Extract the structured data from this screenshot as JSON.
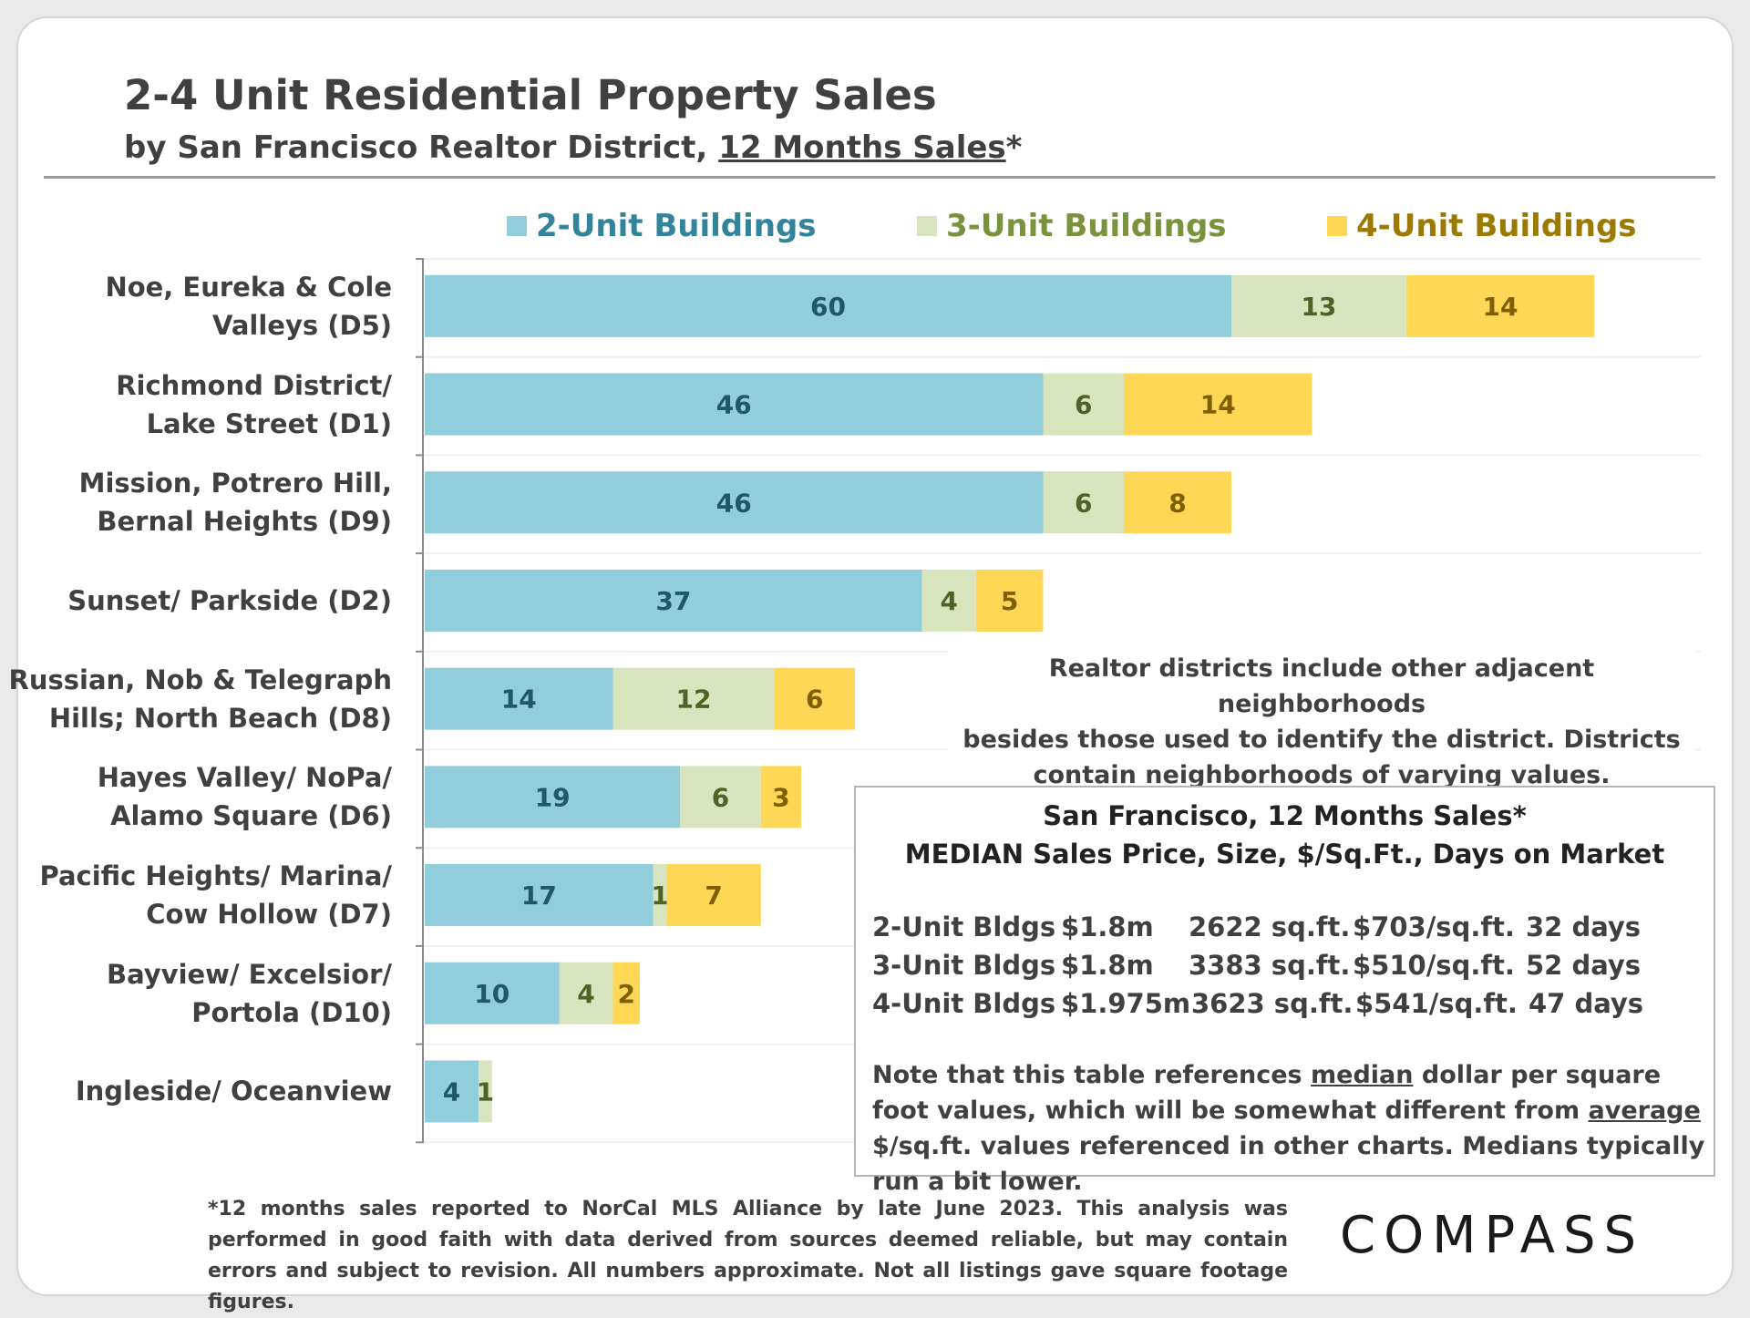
{
  "header": {
    "title": "2-4 Unit Residential Property Sales",
    "subtitle_prefix": "by San Francisco Realtor District, ",
    "subtitle_underlined": "12 Months Sales",
    "subtitle_suffix": "*"
  },
  "colors": {
    "unit2": "#92CDDC",
    "unit3": "#D7E4BD",
    "unit4": "#FFD757",
    "legend2_text": "#31849B",
    "legend3_text": "#77933C",
    "legend4_text": "#9C7A00",
    "label2_text": "#215868",
    "label3_text": "#4F6228",
    "label4_text": "#7F6000"
  },
  "chart_data": {
    "type": "bar",
    "orientation": "horizontal",
    "stacked": true,
    "title": "2-4 Unit Residential Property Sales",
    "categories": [
      [
        "Noe, Eureka & Cole",
        "Valleys (D5)"
      ],
      [
        "Richmond District/",
        "Lake Street (D1)"
      ],
      [
        "Mission, Potrero Hill,",
        "Bernal Heights (D9)"
      ],
      [
        "Sunset/ Parkside (D2)"
      ],
      [
        "Russian, Nob & Telegraph",
        "Hills; North Beach (D8)"
      ],
      [
        "Hayes Valley/ NoPa/",
        "Alamo Square (D6)"
      ],
      [
        "Pacific Heights/ Marina/",
        "Cow Hollow (D7)"
      ],
      [
        "Bayview/ Excelsior/",
        "Portola (D10)"
      ],
      [
        "Ingleside/ Oceanview"
      ]
    ],
    "series": [
      {
        "name": "2-Unit Buildings",
        "values": [
          60,
          46,
          46,
          37,
          14,
          19,
          17,
          10,
          4
        ]
      },
      {
        "name": "3-Unit Buildings",
        "values": [
          13,
          6,
          6,
          4,
          12,
          6,
          1,
          4,
          1
        ]
      },
      {
        "name": "4-Unit Buildings",
        "values": [
          14,
          14,
          8,
          5,
          6,
          3,
          7,
          2,
          0
        ]
      }
    ],
    "xlim": [
      0,
      95
    ],
    "grid": true,
    "legend": "top"
  },
  "note": {
    "lines": [
      "Realtor districts include other adjacent neighborhoods",
      "besides those used to identify the district. Districts",
      "contain neighborhoods of varying values."
    ]
  },
  "stats": {
    "heading1": "San Francisco, 12 Months Sales*",
    "heading2": "MEDIAN Sales Price, Size, $/Sq.Ft., Days on Market",
    "rows": [
      {
        "type": "2-Unit Bldgs",
        "price": "$1.8m",
        "size": "2622 sq.ft.",
        "ppsf": "$703/sq.ft.",
        "dom": "32 days"
      },
      {
        "type": "3-Unit Bldgs",
        "price": "$1.8m",
        "size": "3383 sq.ft.",
        "ppsf": "$510/sq.ft.",
        "dom": "52 days"
      },
      {
        "type": "4-Unit Bldgs",
        "price": "$1.975m",
        "size": "3623 sq.ft.",
        "ppsf": "$541/sq.ft.",
        "dom": "47 days"
      }
    ],
    "note_a": "Note that this table references ",
    "note_median": "median",
    "note_b": " dollar per square foot values, which will be somewhat different from ",
    "note_average": "average",
    "note_c": " $/sq.ft. values referenced in other charts. Medians typically run a bit lower."
  },
  "footnote": "*12 months sales reported to NorCal MLS Alliance by late June 2023. This analysis was performed in good faith with data derived from sources deemed reliable, but may contain errors and subject to revision. All numbers approximate. Not all listings gave square footage figures.",
  "logo": "COMPASS"
}
